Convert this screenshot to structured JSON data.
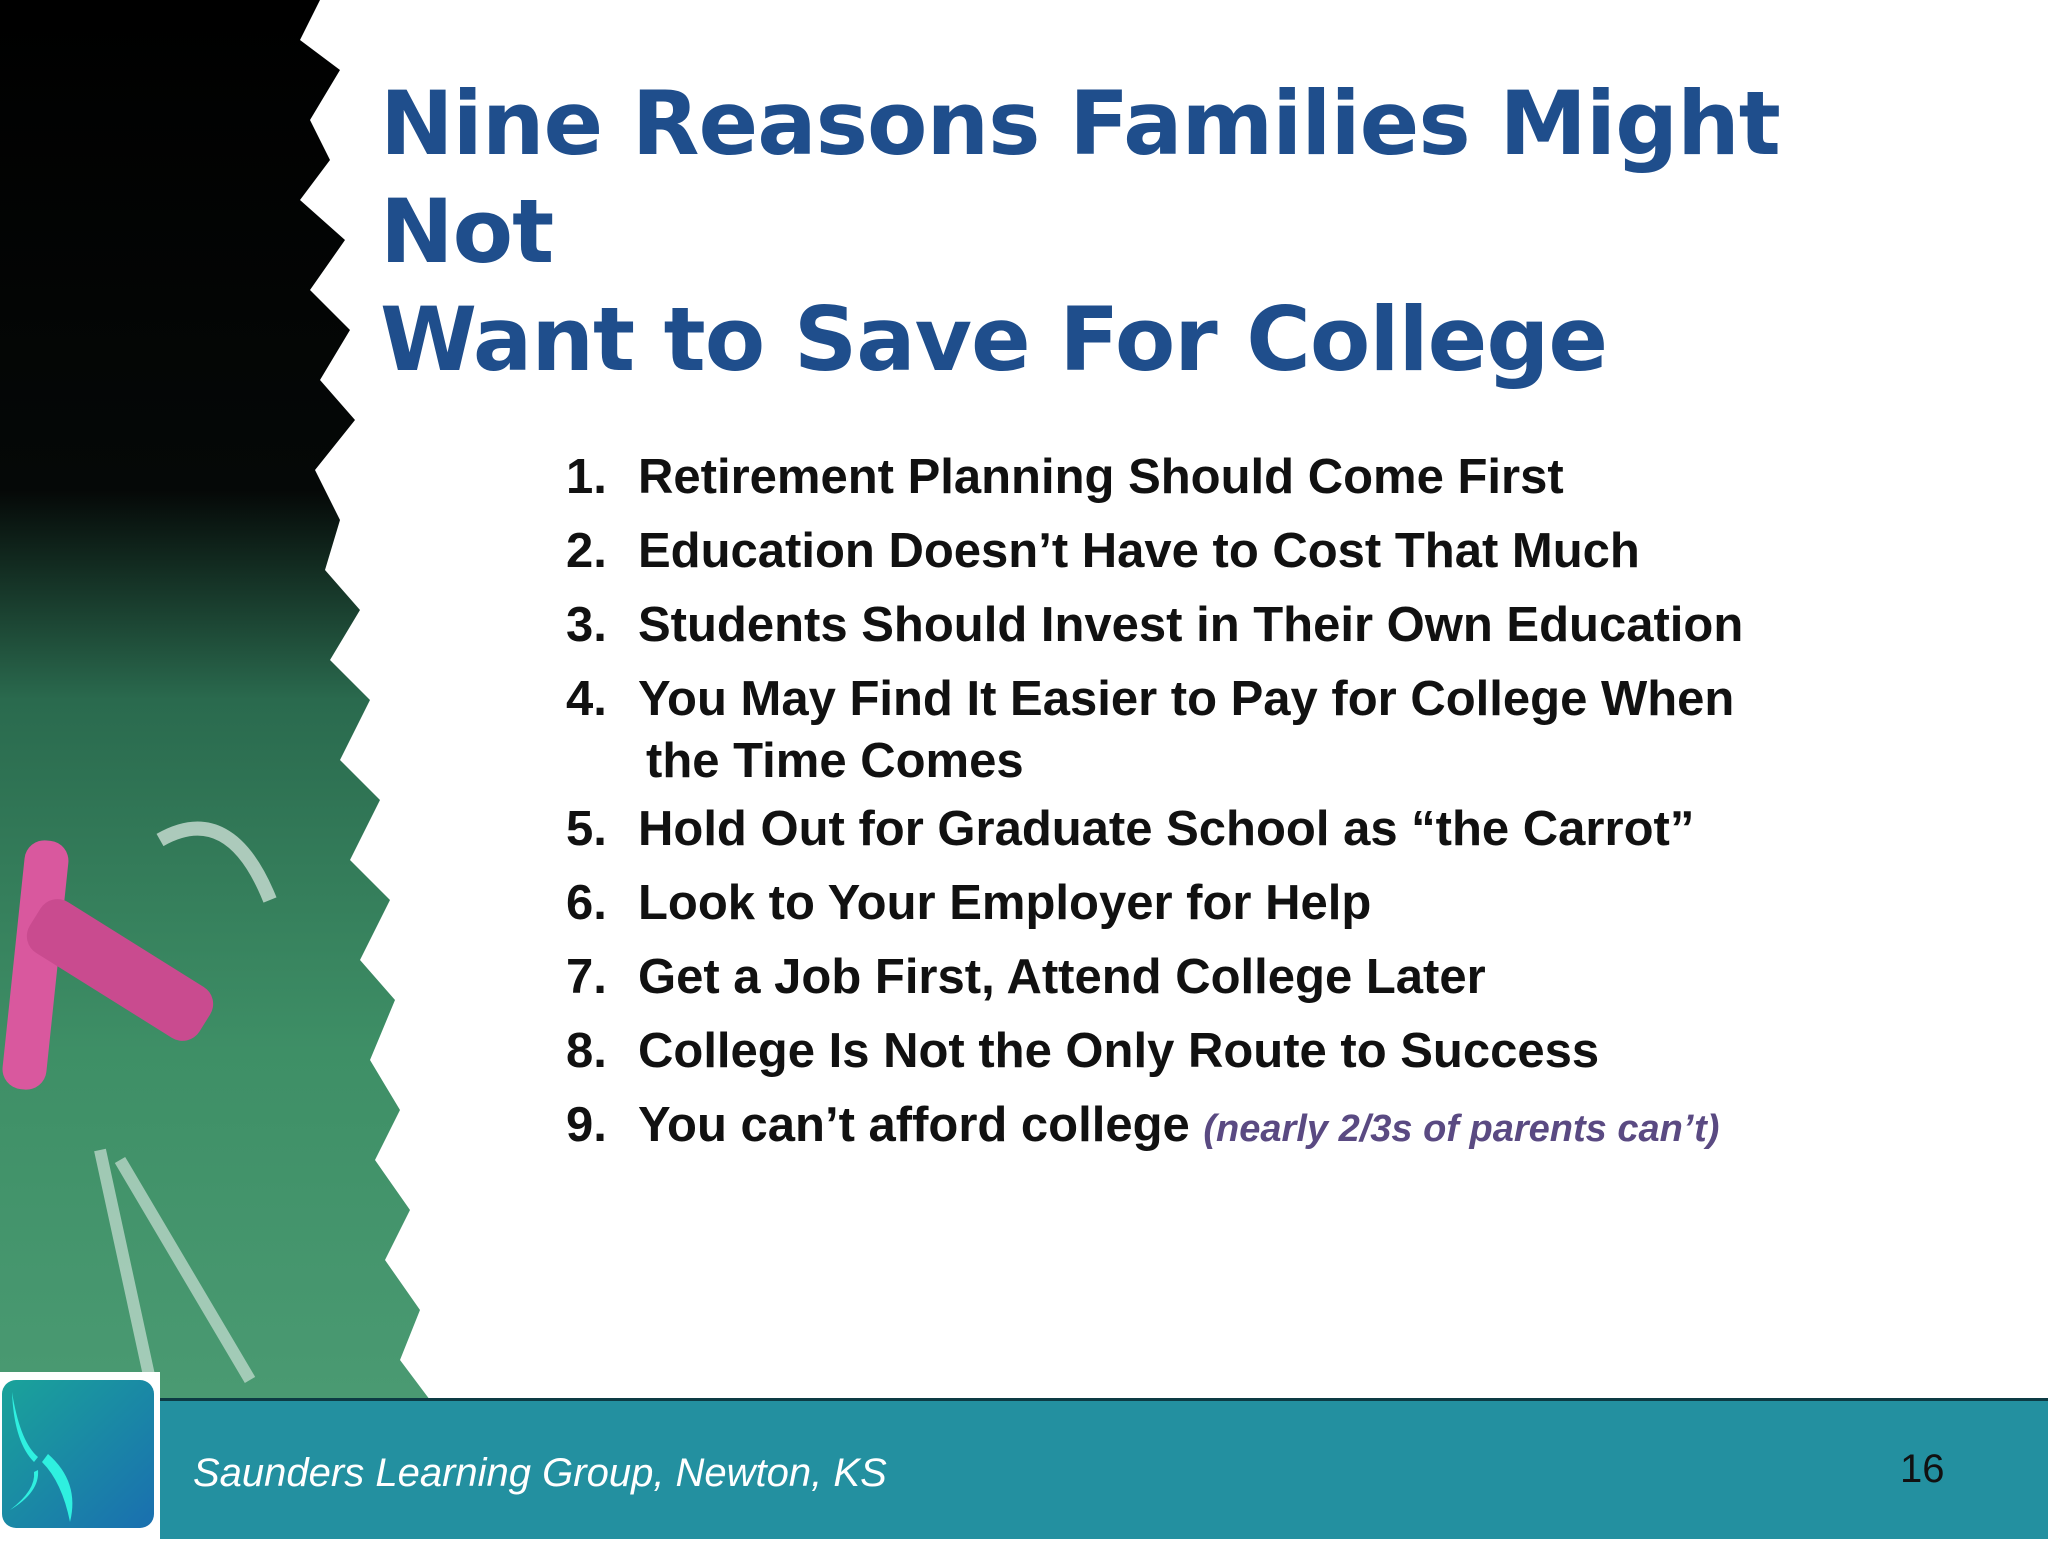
{
  "slide": {
    "title_lines": [
      "Nine Reasons Families Might Not",
      "Want to Save For College"
    ],
    "items": [
      {
        "number": "1.",
        "text": "Retirement Planning Should Come First"
      },
      {
        "number": "2.",
        "text": "Education Doesn’t Have to Cost That Much"
      },
      {
        "number": "3.",
        "text": "Students Should Invest in Their Own Education"
      },
      {
        "number": "4.",
        "text": "You May Find It Easier to Pay for College When",
        "continuation": "the Time Comes"
      },
      {
        "number": "5.",
        "text": "Hold Out for Graduate School as “the Carrot”"
      },
      {
        "number": "6.",
        "text": "Look to Your Employer for Help"
      },
      {
        "number": "7.",
        "text": "Get a Job First, Attend College Later"
      },
      {
        "number": "8.",
        "text": "College Is Not the Only Route to Success"
      },
      {
        "number": "9.",
        "text": "You can’t afford college",
        "note": "(nearly 2/3s of parents can’t)"
      }
    ]
  },
  "footer": {
    "text": "Saunders Learning Group, Newton, KS",
    "page_number": "16"
  },
  "colors": {
    "title": "#1f4e8c",
    "footer_band": "#2390a0",
    "note": "#5a4a82"
  }
}
